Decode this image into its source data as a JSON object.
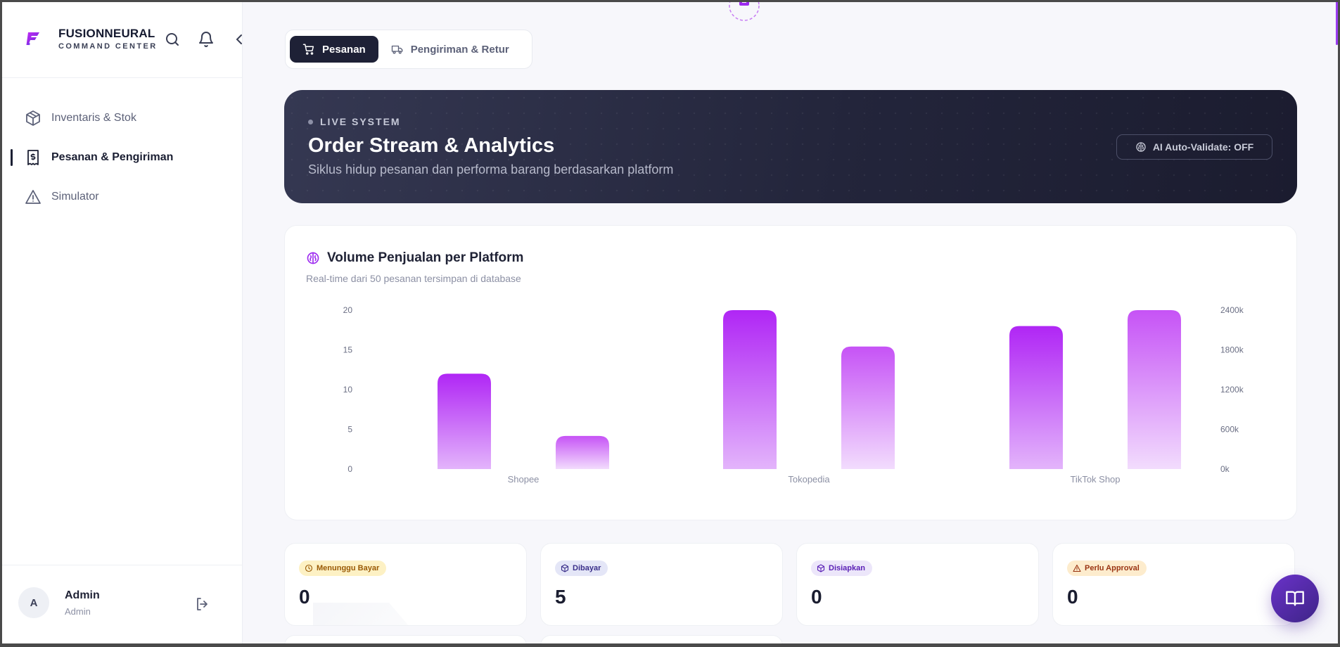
{
  "brand": {
    "name": "FUSIONNEURAL",
    "subtitle": "COMMAND CENTER"
  },
  "sidebar": {
    "items": [
      {
        "label": "Inventaris & Stok",
        "icon": "package-icon",
        "active": false
      },
      {
        "label": "Pesanan & Pengiriman",
        "icon": "receipt-icon",
        "active": true
      },
      {
        "label": "Simulator",
        "icon": "warning-triangle-icon",
        "active": false
      }
    ]
  },
  "user": {
    "initial": "A",
    "name": "Admin",
    "role": "Admin"
  },
  "tabs": [
    {
      "label": "Pesanan",
      "icon": "cart-icon",
      "active": true
    },
    {
      "label": "Pengiriman & Retur",
      "icon": "truck-icon",
      "active": false
    }
  ],
  "hero": {
    "live_label": "LIVE SYSTEM",
    "title": "Order Stream & Analytics",
    "subtitle": "Siklus hidup pesanan dan performa barang berdasarkan platform",
    "ai_button": "AI Auto-Validate: OFF"
  },
  "chart": {
    "title": "Volume Penjualan per Platform",
    "subtitle": "Real-time dari 50 pesanan tersimpan di database"
  },
  "chart_data": {
    "type": "bar",
    "categories": [
      "Shopee",
      "Tokopedia",
      "TikTok Shop"
    ],
    "series": [
      {
        "axis": "left",
        "values": [
          12,
          20,
          18
        ]
      },
      {
        "axis": "right",
        "values": [
          500,
          1850,
          2400
        ]
      }
    ],
    "ylim_left": [
      0,
      20
    ],
    "yticks_left": [
      "0",
      "5",
      "10",
      "15",
      "20"
    ],
    "ylim_right": [
      0,
      2400
    ],
    "yticks_right": [
      "0k",
      "600k",
      "1200k",
      "1800k",
      "2400k"
    ],
    "colors": {
      "primary": "#b026f5",
      "secondary": "#c85ef7"
    },
    "grid": false
  },
  "stats": [
    {
      "label": "Menunggu Bayar",
      "value": "0",
      "icon": "clock-icon",
      "bg": "#fdf1c4",
      "fg": "#9a5a05"
    },
    {
      "label": "Dibayar",
      "value": "5",
      "icon": "box-icon",
      "bg": "#e4e6f7",
      "fg": "#3a2f8a"
    },
    {
      "label": "Disiapkan",
      "value": "0",
      "icon": "box-icon",
      "bg": "#ece6fa",
      "fg": "#5b21b6"
    },
    {
      "label": "Perlu Approval",
      "value": "0",
      "icon": "alert-triangle-icon",
      "bg": "#fdeccd",
      "fg": "#9a3412"
    }
  ]
}
